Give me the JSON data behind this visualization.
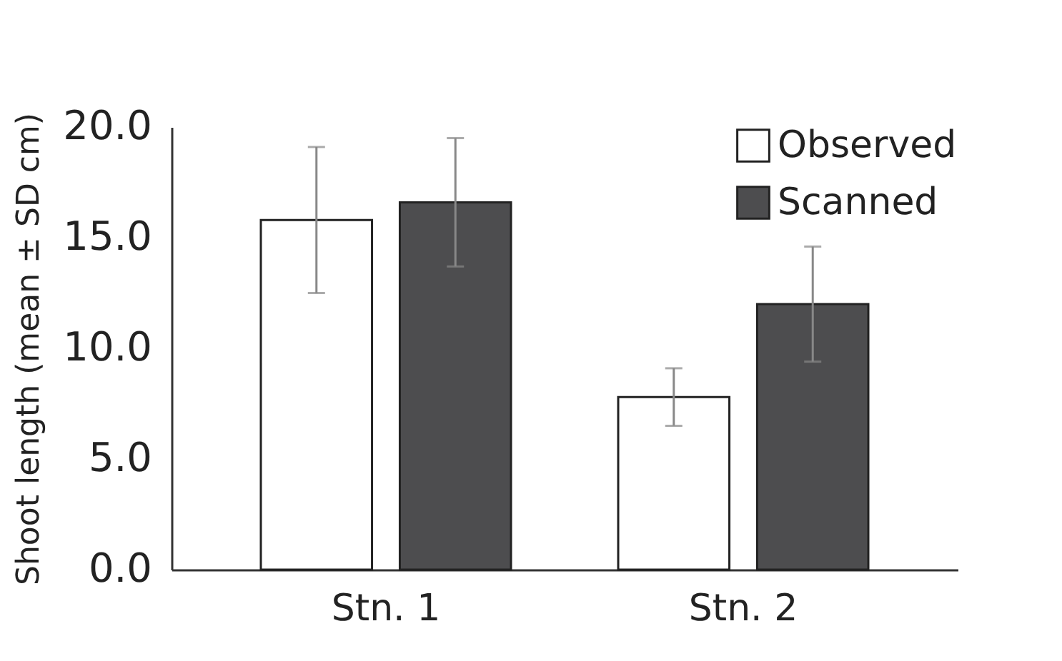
{
  "chart_data": {
    "type": "bar",
    "ylabel": "Shoot length (mean ± SD cm)",
    "categories": [
      "Stn. 1",
      "Stn. 2"
    ],
    "series": [
      {
        "name": "Observed",
        "color": "#ffffff",
        "values": [
          15.8,
          7.8
        ],
        "errors": [
          3.3,
          1.3
        ]
      },
      {
        "name": "Scanned",
        "color": "#4d4d4f",
        "values": [
          16.6,
          12.0
        ],
        "errors": [
          2.9,
          2.6
        ]
      }
    ],
    "ylim": [
      0,
      20
    ],
    "yticks": [
      {
        "value": 0,
        "label": "0.0"
      },
      {
        "value": 5,
        "label": "5.0"
      },
      {
        "value": 10,
        "label": "10.0"
      },
      {
        "value": 15,
        "label": "15.0"
      },
      {
        "value": 20,
        "label": "20.0"
      }
    ],
    "grid": false,
    "legend": "top right"
  }
}
